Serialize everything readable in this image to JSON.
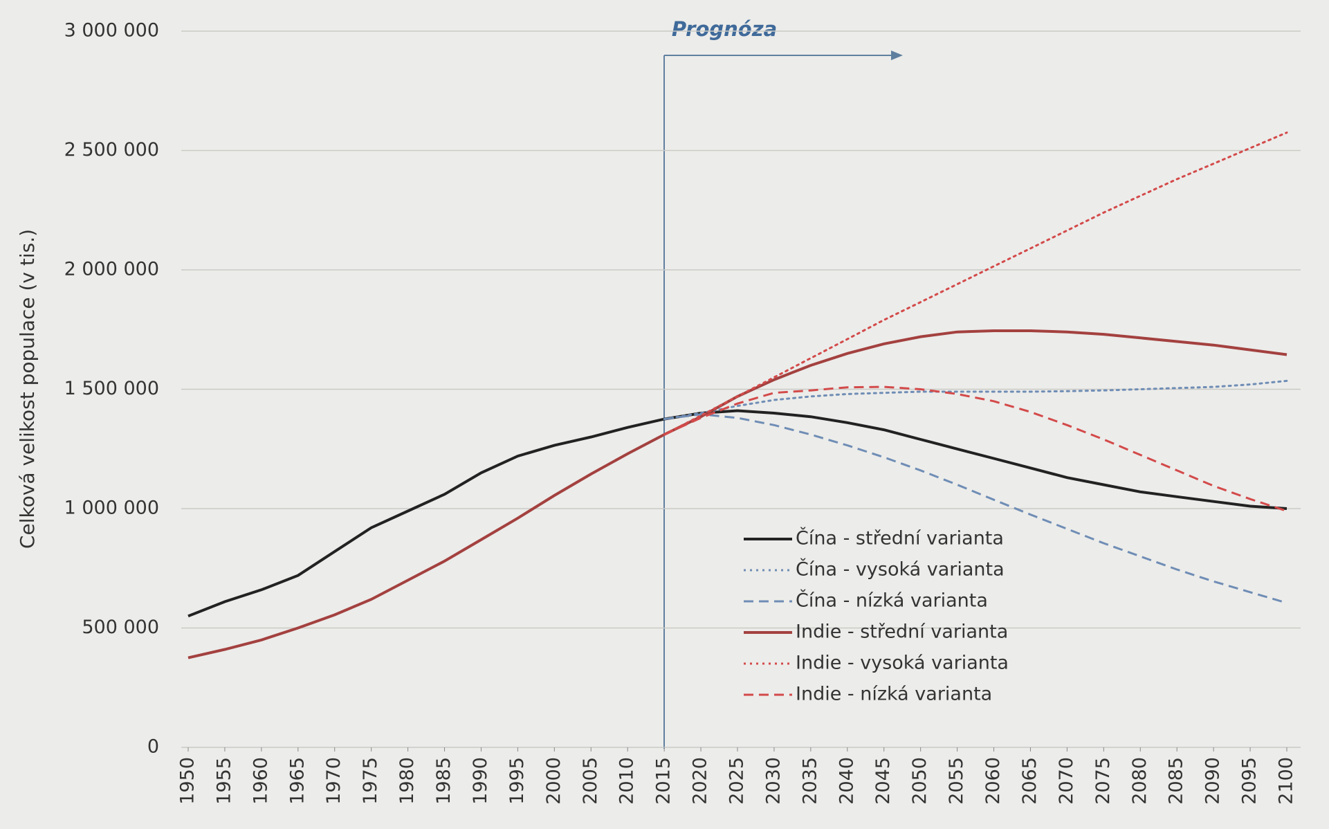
{
  "chart_data": {
    "type": "line",
    "ylabel": "Celková velikost populace (v tis.)",
    "annotation": "Prognóza",
    "x": [
      1950,
      1955,
      1960,
      1965,
      1970,
      1975,
      1980,
      1985,
      1990,
      1995,
      2000,
      2005,
      2010,
      2015,
      2020,
      2025,
      2030,
      2035,
      2040,
      2045,
      2050,
      2055,
      2060,
      2065,
      2070,
      2075,
      2080,
      2085,
      2090,
      2095,
      2100
    ],
    "xlim": [
      1950,
      2100
    ],
    "xticks": [
      1950,
      1955,
      1960,
      1965,
      1970,
      1975,
      1980,
      1985,
      1990,
      1995,
      2000,
      2005,
      2010,
      2015,
      2020,
      2025,
      2030,
      2035,
      2040,
      2045,
      2050,
      2055,
      2060,
      2065,
      2070,
      2075,
      2080,
      2085,
      2090,
      2095,
      2100
    ],
    "ylim": [
      0,
      3000000
    ],
    "yticks": [
      0,
      {
        "value": 500000,
        "label": "500 000"
      },
      {
        "value": 1000000,
        "label": "1 000 000"
      },
      {
        "value": 1500000,
        "label": "1 500 000"
      },
      {
        "value": 2000000,
        "label": "2 000 000"
      },
      {
        "value": 2500000,
        "label": "2 500 000"
      },
      {
        "value": 3000000,
        "label": "3 000 000"
      }
    ],
    "grid": true,
    "series": [
      {
        "name": "Čína - střední varianta",
        "color": "#222222",
        "style": "solid",
        "values": [
          550000,
          610000,
          660000,
          720000,
          820000,
          920000,
          990000,
          1060000,
          1150000,
          1220000,
          1265000,
          1300000,
          1340000,
          1375000,
          1400000,
          1410000,
          1400000,
          1385000,
          1360000,
          1330000,
          1290000,
          1250000,
          1210000,
          1170000,
          1130000,
          1100000,
          1070000,
          1050000,
          1030000,
          1010000,
          1000000
        ]
      },
      {
        "name": "Čína - vysoká varianta",
        "color": "#6f8db5",
        "style": "dotted",
        "values": [
          null,
          null,
          null,
          null,
          null,
          null,
          null,
          null,
          null,
          null,
          null,
          null,
          null,
          1375000,
          1400000,
          1430000,
          1455000,
          1470000,
          1480000,
          1485000,
          1490000,
          1490000,
          1490000,
          1490000,
          1492000,
          1495000,
          1500000,
          1505000,
          1510000,
          1520000,
          1535000
        ]
      },
      {
        "name": "Čína - nízká varianta",
        "color": "#6f8db5",
        "style": "dashed",
        "values": [
          null,
          null,
          null,
          null,
          null,
          null,
          null,
          null,
          null,
          null,
          null,
          null,
          null,
          1375000,
          1395000,
          1380000,
          1350000,
          1310000,
          1265000,
          1215000,
          1160000,
          1100000,
          1037000,
          975000,
          915000,
          855000,
          800000,
          745000,
          695000,
          650000,
          605000
        ]
      },
      {
        "name": "Indie - střední varianta",
        "color": "#a3413f",
        "style": "solid",
        "values": [
          375000,
          410000,
          450000,
          500000,
          555000,
          620000,
          700000,
          780000,
          870000,
          960000,
          1055000,
          1145000,
          1230000,
          1310000,
          1385000,
          1470000,
          1540000,
          1600000,
          1650000,
          1690000,
          1720000,
          1740000,
          1745000,
          1745000,
          1740000,
          1730000,
          1715000,
          1700000,
          1685000,
          1665000,
          1645000
        ]
      },
      {
        "name": "Indie - vysoká varianta",
        "color": "#d34a4a",
        "style": "dotted",
        "values": [
          null,
          null,
          null,
          null,
          null,
          null,
          null,
          null,
          null,
          null,
          null,
          null,
          null,
          1310000,
          1390000,
          1470000,
          1550000,
          1630000,
          1710000,
          1790000,
          1865000,
          1940000,
          2015000,
          2090000,
          2165000,
          2240000,
          2310000,
          2380000,
          2445000,
          2510000,
          2575000
        ]
      },
      {
        "name": "Indie - nízká varianta",
        "color": "#d34a4a",
        "style": "dashed",
        "values": [
          null,
          null,
          null,
          null,
          null,
          null,
          null,
          null,
          null,
          null,
          null,
          null,
          null,
          1310000,
          1380000,
          1440000,
          1485000,
          1495000,
          1508000,
          1510000,
          1500000,
          1480000,
          1450000,
          1405000,
          1350000,
          1290000,
          1225000,
          1160000,
          1095000,
          1040000,
          990000
        ]
      }
    ]
  }
}
